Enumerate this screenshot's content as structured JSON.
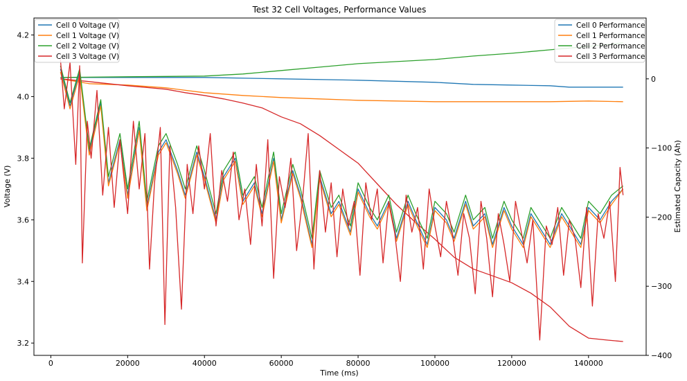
{
  "chart_data": {
    "type": "line",
    "title": "Test 32 Cell Voltages, Performance Values",
    "xlabel": "Time (ms)",
    "ylabel": "Voltage (V)",
    "y2label": "Estimated Capacity (Ah)",
    "xlim": [
      -4400,
      155000
    ],
    "ylim": [
      3.16,
      4.255
    ],
    "y2lim": [
      -400,
      88
    ],
    "x_ticks": [
      0,
      20000,
      40000,
      60000,
      80000,
      100000,
      120000,
      140000
    ],
    "y_ticks": [
      3.2,
      3.4,
      3.6,
      3.8,
      4.0,
      4.2
    ],
    "y2_ticks": [
      -400,
      -300,
      -200,
      -100,
      0
    ],
    "grid": false,
    "legend_left": {
      "placement": "upper-left",
      "entries": [
        "Cell 0 Voltage (V)",
        "Cell 1 Voltage (V)",
        "Cell 2 Voltage (V)",
        "Cell 3 Voltage (V)"
      ]
    },
    "legend_right": {
      "placement": "upper-right",
      "entries": [
        "Cell 0 Performance",
        "Cell 1 Performance",
        "Cell 2 Performance",
        "Cell 3 Performance"
      ]
    },
    "colors": [
      "#1f77b4",
      "#ff7f0e",
      "#2ca02c",
      "#d62728"
    ],
    "voltage_series": [
      {
        "name": "Cell 0 Voltage (V)",
        "x": [
          2500,
          5000,
          7500,
          10000,
          13000,
          15000,
          18000,
          20000,
          23000,
          25000,
          28000,
          30000,
          33000,
          35000,
          38000,
          40000,
          43000,
          45000,
          48000,
          50000,
          53000,
          55000,
          58000,
          60000,
          63000,
          65000,
          68000,
          70000,
          73000,
          75000,
          78000,
          80000,
          83000,
          85000,
          88000,
          90000,
          93000,
          95000,
          98000,
          100000,
          103000,
          105000,
          108000,
          110000,
          113000,
          115000,
          118000,
          120000,
          123000,
          125000,
          128000,
          130000,
          133000,
          135000,
          138000,
          140000,
          143000,
          146000,
          149000
        ],
        "y": [
          4.09,
          3.97,
          4.08,
          3.82,
          3.98,
          3.72,
          3.86,
          3.68,
          3.9,
          3.64,
          3.82,
          3.86,
          3.76,
          3.68,
          3.82,
          3.74,
          3.6,
          3.74,
          3.8,
          3.66,
          3.72,
          3.62,
          3.8,
          3.6,
          3.76,
          3.68,
          3.52,
          3.74,
          3.62,
          3.66,
          3.56,
          3.7,
          3.62,
          3.58,
          3.66,
          3.54,
          3.66,
          3.6,
          3.52,
          3.64,
          3.6,
          3.54,
          3.66,
          3.58,
          3.62,
          3.52,
          3.64,
          3.58,
          3.52,
          3.62,
          3.56,
          3.52,
          3.62,
          3.58,
          3.52,
          3.64,
          3.6,
          3.66,
          3.7
        ]
      },
      {
        "name": "Cell 1 Voltage (V)",
        "x": [
          2500,
          5000,
          7500,
          10000,
          13000,
          15000,
          18000,
          20000,
          23000,
          25000,
          28000,
          30000,
          33000,
          35000,
          38000,
          40000,
          43000,
          45000,
          48000,
          50000,
          53000,
          55000,
          58000,
          60000,
          63000,
          65000,
          68000,
          70000,
          73000,
          75000,
          78000,
          80000,
          83000,
          85000,
          88000,
          90000,
          93000,
          95000,
          98000,
          100000,
          103000,
          105000,
          108000,
          110000,
          113000,
          115000,
          118000,
          120000,
          123000,
          125000,
          128000,
          130000,
          133000,
          135000,
          138000,
          140000,
          143000,
          146000,
          149000
        ],
        "y": [
          4.08,
          3.96,
          4.07,
          3.81,
          3.97,
          3.71,
          3.85,
          3.67,
          3.89,
          3.63,
          3.81,
          3.85,
          3.75,
          3.67,
          3.81,
          3.73,
          3.59,
          3.73,
          3.79,
          3.65,
          3.71,
          3.61,
          3.79,
          3.59,
          3.75,
          3.67,
          3.51,
          3.73,
          3.61,
          3.65,
          3.55,
          3.69,
          3.61,
          3.57,
          3.65,
          3.53,
          3.65,
          3.59,
          3.51,
          3.63,
          3.59,
          3.53,
          3.65,
          3.57,
          3.61,
          3.51,
          3.63,
          3.57,
          3.51,
          3.61,
          3.55,
          3.51,
          3.61,
          3.57,
          3.51,
          3.63,
          3.59,
          3.65,
          3.7
        ]
      },
      {
        "name": "Cell 2 Voltage (V)",
        "x": [
          2500,
          5000,
          7500,
          10000,
          13000,
          15000,
          18000,
          20000,
          23000,
          25000,
          28000,
          30000,
          33000,
          35000,
          38000,
          40000,
          43000,
          45000,
          48000,
          50000,
          53000,
          55000,
          58000,
          60000,
          63000,
          65000,
          68000,
          70000,
          73000,
          75000,
          78000,
          80000,
          83000,
          85000,
          88000,
          90000,
          93000,
          95000,
          98000,
          100000,
          103000,
          105000,
          108000,
          110000,
          113000,
          115000,
          118000,
          120000,
          123000,
          125000,
          128000,
          130000,
          133000,
          135000,
          138000,
          140000,
          143000,
          146000,
          149000
        ],
        "y": [
          4.1,
          3.98,
          4.09,
          3.83,
          3.99,
          3.74,
          3.88,
          3.7,
          3.92,
          3.66,
          3.84,
          3.88,
          3.78,
          3.7,
          3.84,
          3.76,
          3.62,
          3.76,
          3.82,
          3.68,
          3.74,
          3.64,
          3.82,
          3.62,
          3.78,
          3.7,
          3.54,
          3.76,
          3.64,
          3.68,
          3.58,
          3.72,
          3.64,
          3.6,
          3.68,
          3.56,
          3.68,
          3.62,
          3.54,
          3.66,
          3.62,
          3.56,
          3.68,
          3.6,
          3.64,
          3.54,
          3.66,
          3.6,
          3.54,
          3.64,
          3.58,
          3.54,
          3.64,
          3.6,
          3.54,
          3.66,
          3.62,
          3.68,
          3.71
        ]
      },
      {
        "name": "Cell 3 Voltage (V)",
        "x": [
          2500,
          3500,
          5000,
          6500,
          7500,
          8200,
          9500,
          10500,
          12000,
          13500,
          15000,
          16500,
          18000,
          20000,
          21500,
          23000,
          24500,
          25700,
          27000,
          28500,
          29700,
          31000,
          32500,
          34000,
          35500,
          37000,
          38500,
          40000,
          41500,
          43000,
          44500,
          46000,
          47500,
          49000,
          50500,
          52000,
          53500,
          55000,
          56500,
          58000,
          59500,
          61000,
          62500,
          64000,
          65500,
          67000,
          68500,
          70000,
          71500,
          73000,
          74500,
          76000,
          77500,
          79000,
          80500,
          82000,
          83500,
          85000,
          86500,
          88000,
          89500,
          91000,
          92500,
          94000,
          95500,
          97000,
          98500,
          100000,
          101500,
          103000,
          104500,
          106000,
          107500,
          109000,
          110500,
          112000,
          113500,
          115000,
          116500,
          118000,
          119500,
          121000,
          122500,
          124000,
          125500,
          127300,
          129000,
          130500,
          132000,
          133500,
          135000,
          136500,
          138000,
          139500,
          141000,
          142500,
          144000,
          145500,
          147000,
          148200,
          149000
        ],
        "y": [
          4.12,
          3.96,
          4.11,
          3.78,
          4.1,
          3.46,
          3.92,
          3.8,
          4.02,
          3.68,
          3.9,
          3.64,
          3.86,
          3.62,
          3.92,
          3.7,
          3.88,
          3.44,
          3.72,
          3.9,
          3.26,
          3.84,
          3.64,
          3.31,
          3.78,
          3.62,
          3.84,
          3.7,
          3.88,
          3.58,
          3.76,
          3.66,
          3.82,
          3.6,
          3.7,
          3.52,
          3.78,
          3.58,
          3.86,
          3.41,
          3.74,
          3.64,
          3.8,
          3.5,
          3.66,
          3.88,
          3.44,
          3.76,
          3.56,
          3.72,
          3.48,
          3.7,
          3.58,
          3.66,
          3.42,
          3.72,
          3.6,
          3.7,
          3.46,
          3.66,
          3.56,
          3.4,
          3.68,
          3.56,
          3.64,
          3.44,
          3.7,
          3.58,
          3.48,
          3.66,
          3.56,
          3.42,
          3.62,
          3.54,
          3.36,
          3.66,
          3.54,
          3.35,
          3.62,
          3.52,
          3.4,
          3.66,
          3.56,
          3.46,
          3.6,
          3.21,
          3.58,
          3.52,
          3.64,
          3.42,
          3.6,
          3.54,
          3.38,
          3.64,
          3.32,
          3.62,
          3.54,
          3.66,
          3.4,
          3.77,
          3.68
        ]
      }
    ],
    "performance_series": [
      {
        "name": "Cell 0 Performance",
        "x": [
          2500,
          20000,
          40000,
          60000,
          80000,
          100000,
          110000,
          120000,
          130000,
          135000,
          149000
        ],
        "y": [
          2,
          2,
          2,
          0,
          -2,
          -5,
          -8,
          -9,
          -10,
          -12,
          -12
        ]
      },
      {
        "name": "Cell 1 Performance",
        "x": [
          2500,
          10000,
          20000,
          30000,
          40000,
          50000,
          60000,
          70000,
          80000,
          90000,
          100000,
          110000,
          120000,
          130000,
          140000,
          149000
        ],
        "y": [
          0,
          -7,
          -9,
          -13,
          -20,
          -24,
          -27,
          -29,
          -31,
          -32,
          -33,
          -33,
          -33,
          -33,
          -32,
          -33
        ]
      },
      {
        "name": "Cell 2 Performance",
        "x": [
          2500,
          20000,
          40000,
          50000,
          60000,
          70000,
          80000,
          90000,
          100000,
          110000,
          120000,
          130000,
          140000,
          149000
        ],
        "y": [
          2,
          3,
          4,
          7,
          12,
          17,
          22,
          25,
          28,
          33,
          37,
          42,
          47,
          52
        ]
      },
      {
        "name": "Cell 3 Performance",
        "x": [
          2500,
          10000,
          20000,
          30000,
          35000,
          40000,
          45000,
          50000,
          55000,
          60000,
          65000,
          70000,
          75000,
          80000,
          85000,
          90000,
          95000,
          100000,
          105000,
          110000,
          115000,
          120000,
          125000,
          130000,
          135000,
          140000,
          145000,
          149000
        ],
        "y": [
          0,
          -4,
          -10,
          -15,
          -20,
          -24,
          -29,
          -35,
          -42,
          -55,
          -65,
          -82,
          -102,
          -122,
          -152,
          -182,
          -208,
          -232,
          -258,
          -275,
          -285,
          -295,
          -310,
          -330,
          -358,
          -375,
          -378,
          -380
        ]
      }
    ]
  }
}
